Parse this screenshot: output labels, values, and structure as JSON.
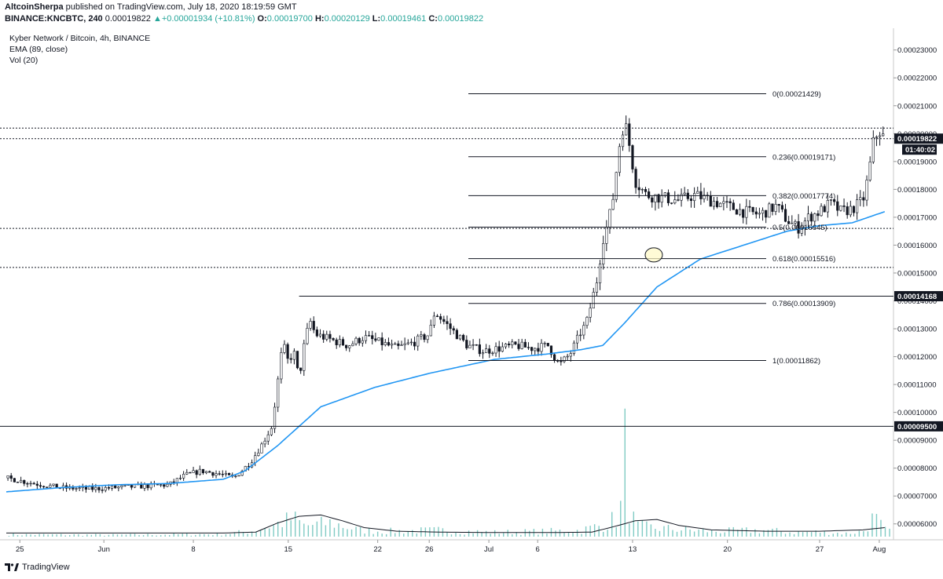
{
  "header": {
    "author": "AltcoinSherpa",
    "published": " published on TradingView.com, July 18, 2020 18:19:59 GMT",
    "symbol": "BINANCE:KNCBTC, 240",
    "last": "0.00019822",
    "change_arrow": "▲",
    "change": "+0.00001934 (+10.81%)",
    "o_label": "O:",
    "o_value": "0.00019700",
    "h_label": "H:",
    "h_value": "0.00020129",
    "l_label": "L:",
    "l_value": "0.00019461",
    "c_label": "C:",
    "c_value": "0.00019822"
  },
  "legend": {
    "title": "Kyber Network / Bitcoin, 4h, BINANCE",
    "ema": "EMA (89, close)",
    "vol": "Vol (20)"
  },
  "footer": {
    "brand": "TradingView"
  },
  "colors": {
    "candle": "#131722",
    "ema": "#2196f3",
    "volume": "#80cbc4",
    "volume_ma": "#131722",
    "axis_text": "#131722",
    "badge_bg": "#131722",
    "badge_text": "#ffffff"
  },
  "chart_data": {
    "type": "candlestick",
    "title": "Kyber Network / Bitcoin, 4h, BINANCE",
    "xlabel": "",
    "ylabel": "",
    "ylim": [
      5.43e-05,
      0.0002378
    ],
    "y_ticks": [
      "0.00023000",
      "0.00022000",
      "0.00021000",
      "0.00020000",
      "0.00019000",
      "0.00018000",
      "0.00017000",
      "0.00016000",
      "0.00015000",
      "0.00014000",
      "0.00013000",
      "0.00012000",
      "0.00011000",
      "0.00010000",
      "0.00009000",
      "0.00008000",
      "0.00007000",
      "0.00006000"
    ],
    "x_ticks": [
      "25",
      "Jun",
      "8",
      "15",
      "22",
      "26",
      "Jul",
      "6",
      "13",
      "20",
      "27",
      "Aug"
    ],
    "price_path": [
      [
        0,
        7.65e-05
      ],
      [
        5,
        7.45e-05
      ],
      [
        10,
        7.3e-05
      ],
      [
        15,
        7.25e-05
      ],
      [
        20,
        7.3e-05
      ],
      [
        25,
        7.35e-05
      ],
      [
        30,
        7.4e-05
      ],
      [
        33,
        7.75e-05
      ],
      [
        36,
        7.9e-05
      ],
      [
        39,
        7.8e-05
      ],
      [
        42,
        7.65e-05
      ],
      [
        45,
        8.2e-05
      ],
      [
        47,
        8.8e-05
      ],
      [
        49,
        9.5e-05
      ],
      [
        50,
        0.00011
      ],
      [
        51,
        0.000125
      ],
      [
        52,
        0.000118
      ],
      [
        53,
        0.000122
      ],
      [
        54,
        0.000112
      ],
      [
        55,
        0.000125
      ],
      [
        56,
        0.000133
      ],
      [
        57,
        0.000128
      ],
      [
        60,
        0.000126
      ],
      [
        63,
        0.000124
      ],
      [
        66,
        0.000127
      ],
      [
        69,
        0.000125
      ],
      [
        72,
        0.000123
      ],
      [
        75,
        0.000125
      ],
      [
        78,
        0.000128
      ],
      [
        79,
        0.000136
      ],
      [
        80,
        0.000134
      ],
      [
        82,
        0.00013
      ],
      [
        85,
        0.000124
      ],
      [
        88,
        0.000122
      ],
      [
        91,
        0.000123
      ],
      [
        94,
        0.000124
      ],
      [
        97,
        0.000123
      ],
      [
        100,
        0.000124
      ],
      [
        101,
        0.00012
      ],
      [
        102,
        0.000117
      ],
      [
        103,
        0.000119
      ],
      [
        104,
        0.000121
      ],
      [
        105,
        0.000125
      ],
      [
        106,
        0.000129
      ],
      [
        107,
        0.000132
      ],
      [
        108,
        0.00014
      ],
      [
        109,
        0.000148
      ],
      [
        110,
        0.000162
      ],
      [
        111,
        0.000168
      ],
      [
        112,
        0.000178
      ],
      [
        113,
        0.000195
      ],
      [
        114,
        0.000205
      ],
      [
        115,
        0.000195
      ],
      [
        116,
        0.000183
      ],
      [
        118,
        0.000178
      ],
      [
        121,
        0.000177
      ],
      [
        124,
        0.000176
      ],
      [
        127,
        0.000178
      ],
      [
        130,
        0.000176
      ],
      [
        133,
        0.000174
      ],
      [
        136,
        0.000172
      ],
      [
        139,
        0.000171
      ],
      [
        142,
        0.000174
      ],
      [
        144,
        0.000169
      ],
      [
        146,
        0.000166
      ],
      [
        148,
        0.00017
      ],
      [
        150,
        0.000172
      ],
      [
        152,
        0.000175
      ],
      [
        154,
        0.000172
      ],
      [
        156,
        0.000173
      ],
      [
        158,
        0.000176
      ],
      [
        159,
        0.000185
      ],
      [
        160,
        0.000198
      ],
      [
        161,
        0.000201
      ],
      [
        162,
        0.000198
      ]
    ],
    "price_range_days": [
      0,
      164
    ],
    "ema_path": [
      [
        0,
        7.15e-05
      ],
      [
        10,
        7.3e-05
      ],
      [
        20,
        7.4e-05
      ],
      [
        30,
        7.45e-05
      ],
      [
        40,
        7.6e-05
      ],
      [
        44,
        7.9e-05
      ],
      [
        50,
        8.8e-05
      ],
      [
        58,
        0.000102
      ],
      [
        68,
        0.000109
      ],
      [
        78,
        0.000114
      ],
      [
        90,
        0.000119
      ],
      [
        100,
        0.000121
      ],
      [
        106,
        0.0001225
      ],
      [
        110,
        0.000124
      ],
      [
        114,
        0.000132
      ],
      [
        120,
        0.000145
      ],
      [
        128,
        0.000155
      ],
      [
        136,
        0.00016
      ],
      [
        144,
        0.000165
      ],
      [
        150,
        0.000167
      ],
      [
        156,
        0.000168
      ],
      [
        162,
        0.000172
      ]
    ],
    "volume_ylim": [
      0,
      1
    ],
    "volume_path": [
      [
        0,
        0.1
      ],
      [
        20,
        0.08
      ],
      [
        40,
        0.12
      ],
      [
        45,
        0.25
      ],
      [
        50,
        0.6
      ],
      [
        53,
        0.85
      ],
      [
        55,
        0.5
      ],
      [
        60,
        0.65
      ],
      [
        65,
        0.3
      ],
      [
        70,
        0.25
      ],
      [
        80,
        0.3
      ],
      [
        90,
        0.2
      ],
      [
        100,
        0.25
      ],
      [
        106,
        0.3
      ],
      [
        110,
        0.55
      ],
      [
        113,
        0.9
      ],
      [
        114,
        2.4
      ],
      [
        116,
        0.5
      ],
      [
        120,
        0.4
      ],
      [
        130,
        0.25
      ],
      [
        140,
        0.3
      ],
      [
        145,
        0.2
      ],
      [
        150,
        0.22
      ],
      [
        155,
        0.15
      ],
      [
        158,
        0.25
      ],
      [
        160,
        0.9
      ],
      [
        162,
        0.3
      ]
    ],
    "volume_ma_path": [
      [
        0,
        0.08
      ],
      [
        20,
        0.08
      ],
      [
        40,
        0.08
      ],
      [
        46,
        0.1
      ],
      [
        50,
        0.3
      ],
      [
        54,
        0.45
      ],
      [
        58,
        0.48
      ],
      [
        62,
        0.35
      ],
      [
        66,
        0.2
      ],
      [
        72,
        0.12
      ],
      [
        80,
        0.1
      ],
      [
        90,
        0.09
      ],
      [
        100,
        0.09
      ],
      [
        108,
        0.1
      ],
      [
        112,
        0.22
      ],
      [
        116,
        0.35
      ],
      [
        120,
        0.38
      ],
      [
        124,
        0.25
      ],
      [
        130,
        0.15
      ],
      [
        140,
        0.12
      ],
      [
        150,
        0.12
      ],
      [
        158,
        0.15
      ],
      [
        162,
        0.2
      ]
    ],
    "fib_levels": [
      {
        "ratio": "0",
        "value": 0.00021429,
        "label": "0(0.00021429)"
      },
      {
        "ratio": "0.236",
        "value": 0.00019171,
        "label": "0.236(0.00019171)"
      },
      {
        "ratio": "0.382",
        "value": 0.00017774,
        "label": "0.382(0.00017774)"
      },
      {
        "ratio": "0.5",
        "value": 0.00016645,
        "label": "0.5(0.00016645)"
      },
      {
        "ratio": "0.618",
        "value": 0.00015516,
        "label": "0.618(0.00015516)"
      },
      {
        "ratio": "0.786",
        "value": 0.00013909,
        "label": "0.786(0.00013909)"
      },
      {
        "ratio": "1",
        "value": 0.00011862,
        "label": "1(0.00011862)"
      }
    ],
    "horizontal_lines": [
      {
        "value": 0.00014168,
        "style": "solid",
        "badge": "0.00014168"
      },
      {
        "value": 9.5e-05,
        "style": "solid",
        "badge": "0.00009500"
      },
      {
        "value": 0.0001982,
        "style": "dotted",
        "badge": "0.00019822"
      },
      {
        "value": 0.000202,
        "style": "dotted"
      },
      {
        "value": 0.000166,
        "style": "dotted"
      },
      {
        "value": 0.000152,
        "style": "dotted"
      }
    ],
    "countdown": "01:40:02",
    "marker_circle": {
      "day": 140,
      "value": 0.0001565
    }
  }
}
